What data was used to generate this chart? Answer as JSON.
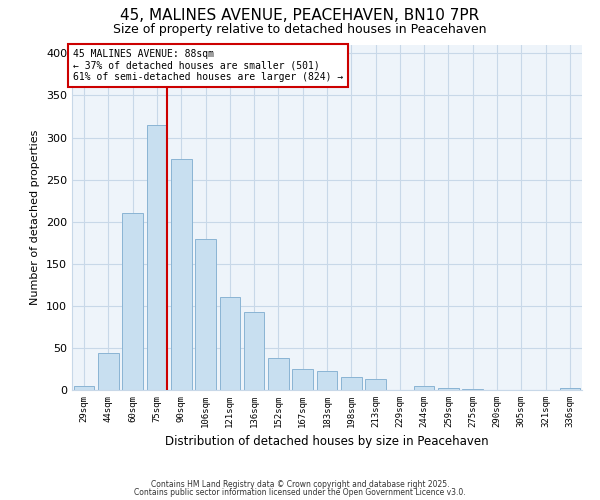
{
  "title": "45, MALINES AVENUE, PEACEHAVEN, BN10 7PR",
  "subtitle": "Size of property relative to detached houses in Peacehaven",
  "xlabel": "Distribution of detached houses by size in Peacehaven",
  "ylabel": "Number of detached properties",
  "bar_color": "#c8dff0",
  "bar_edge_color": "#8ab4d4",
  "grid_color": "#c8d8e8",
  "bg_color": "#ffffff",
  "plot_bg_color": "#eef4fa",
  "vline_color": "#cc0000",
  "categories": [
    "29sqm",
    "44sqm",
    "60sqm",
    "75sqm",
    "90sqm",
    "106sqm",
    "121sqm",
    "136sqm",
    "152sqm",
    "167sqm",
    "183sqm",
    "198sqm",
    "213sqm",
    "229sqm",
    "244sqm",
    "259sqm",
    "275sqm",
    "290sqm",
    "305sqm",
    "321sqm",
    "336sqm"
  ],
  "values": [
    5,
    44,
    210,
    315,
    275,
    180,
    110,
    93,
    38,
    25,
    23,
    16,
    13,
    0,
    5,
    2,
    1,
    0,
    0,
    0,
    2
  ],
  "ylim": [
    0,
    410
  ],
  "annotation_line1": "45 MALINES AVENUE: 88sqm",
  "annotation_line2": "← 37% of detached houses are smaller (501)",
  "annotation_line3": "61% of semi-detached houses are larger (824) →",
  "annotation_box_color": "#ffffff",
  "annotation_box_edge": "#cc0000",
  "footnote1": "Contains HM Land Registry data © Crown copyright and database right 2025.",
  "footnote2": "Contains public sector information licensed under the Open Government Licence v3.0."
}
